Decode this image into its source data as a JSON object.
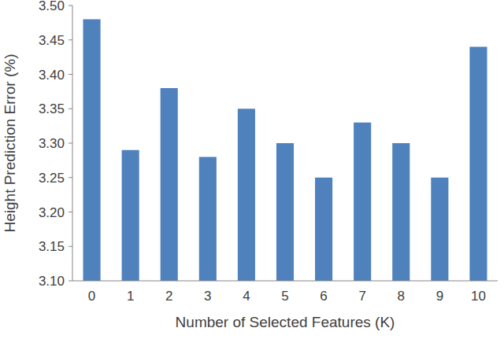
{
  "chart_data": {
    "type": "bar",
    "x_label": "Number of Selected Features (K)",
    "y_label": "Height Prediction Error (%)",
    "categories": [
      "0",
      "1",
      "2",
      "3",
      "4",
      "5",
      "6",
      "7",
      "8",
      "9",
      "10"
    ],
    "values": [
      3.48,
      3.29,
      3.38,
      3.28,
      3.35,
      3.3,
      3.25,
      3.33,
      3.3,
      3.25,
      3.44
    ],
    "color": "#4f81bd",
    "ylim": [
      3.1,
      3.5
    ],
    "yticks": [
      {
        "value": 3.1,
        "label": "3.10"
      },
      3.15,
      {
        "value": 3.2,
        "label": "3.20"
      },
      3.25,
      {
        "value": 3.3,
        "label": "3.30"
      },
      3.35,
      {
        "value": 3.4,
        "label": "3.40"
      },
      3.45,
      {
        "value": 3.5,
        "label": "3.50"
      }
    ],
    "grid": false
  }
}
